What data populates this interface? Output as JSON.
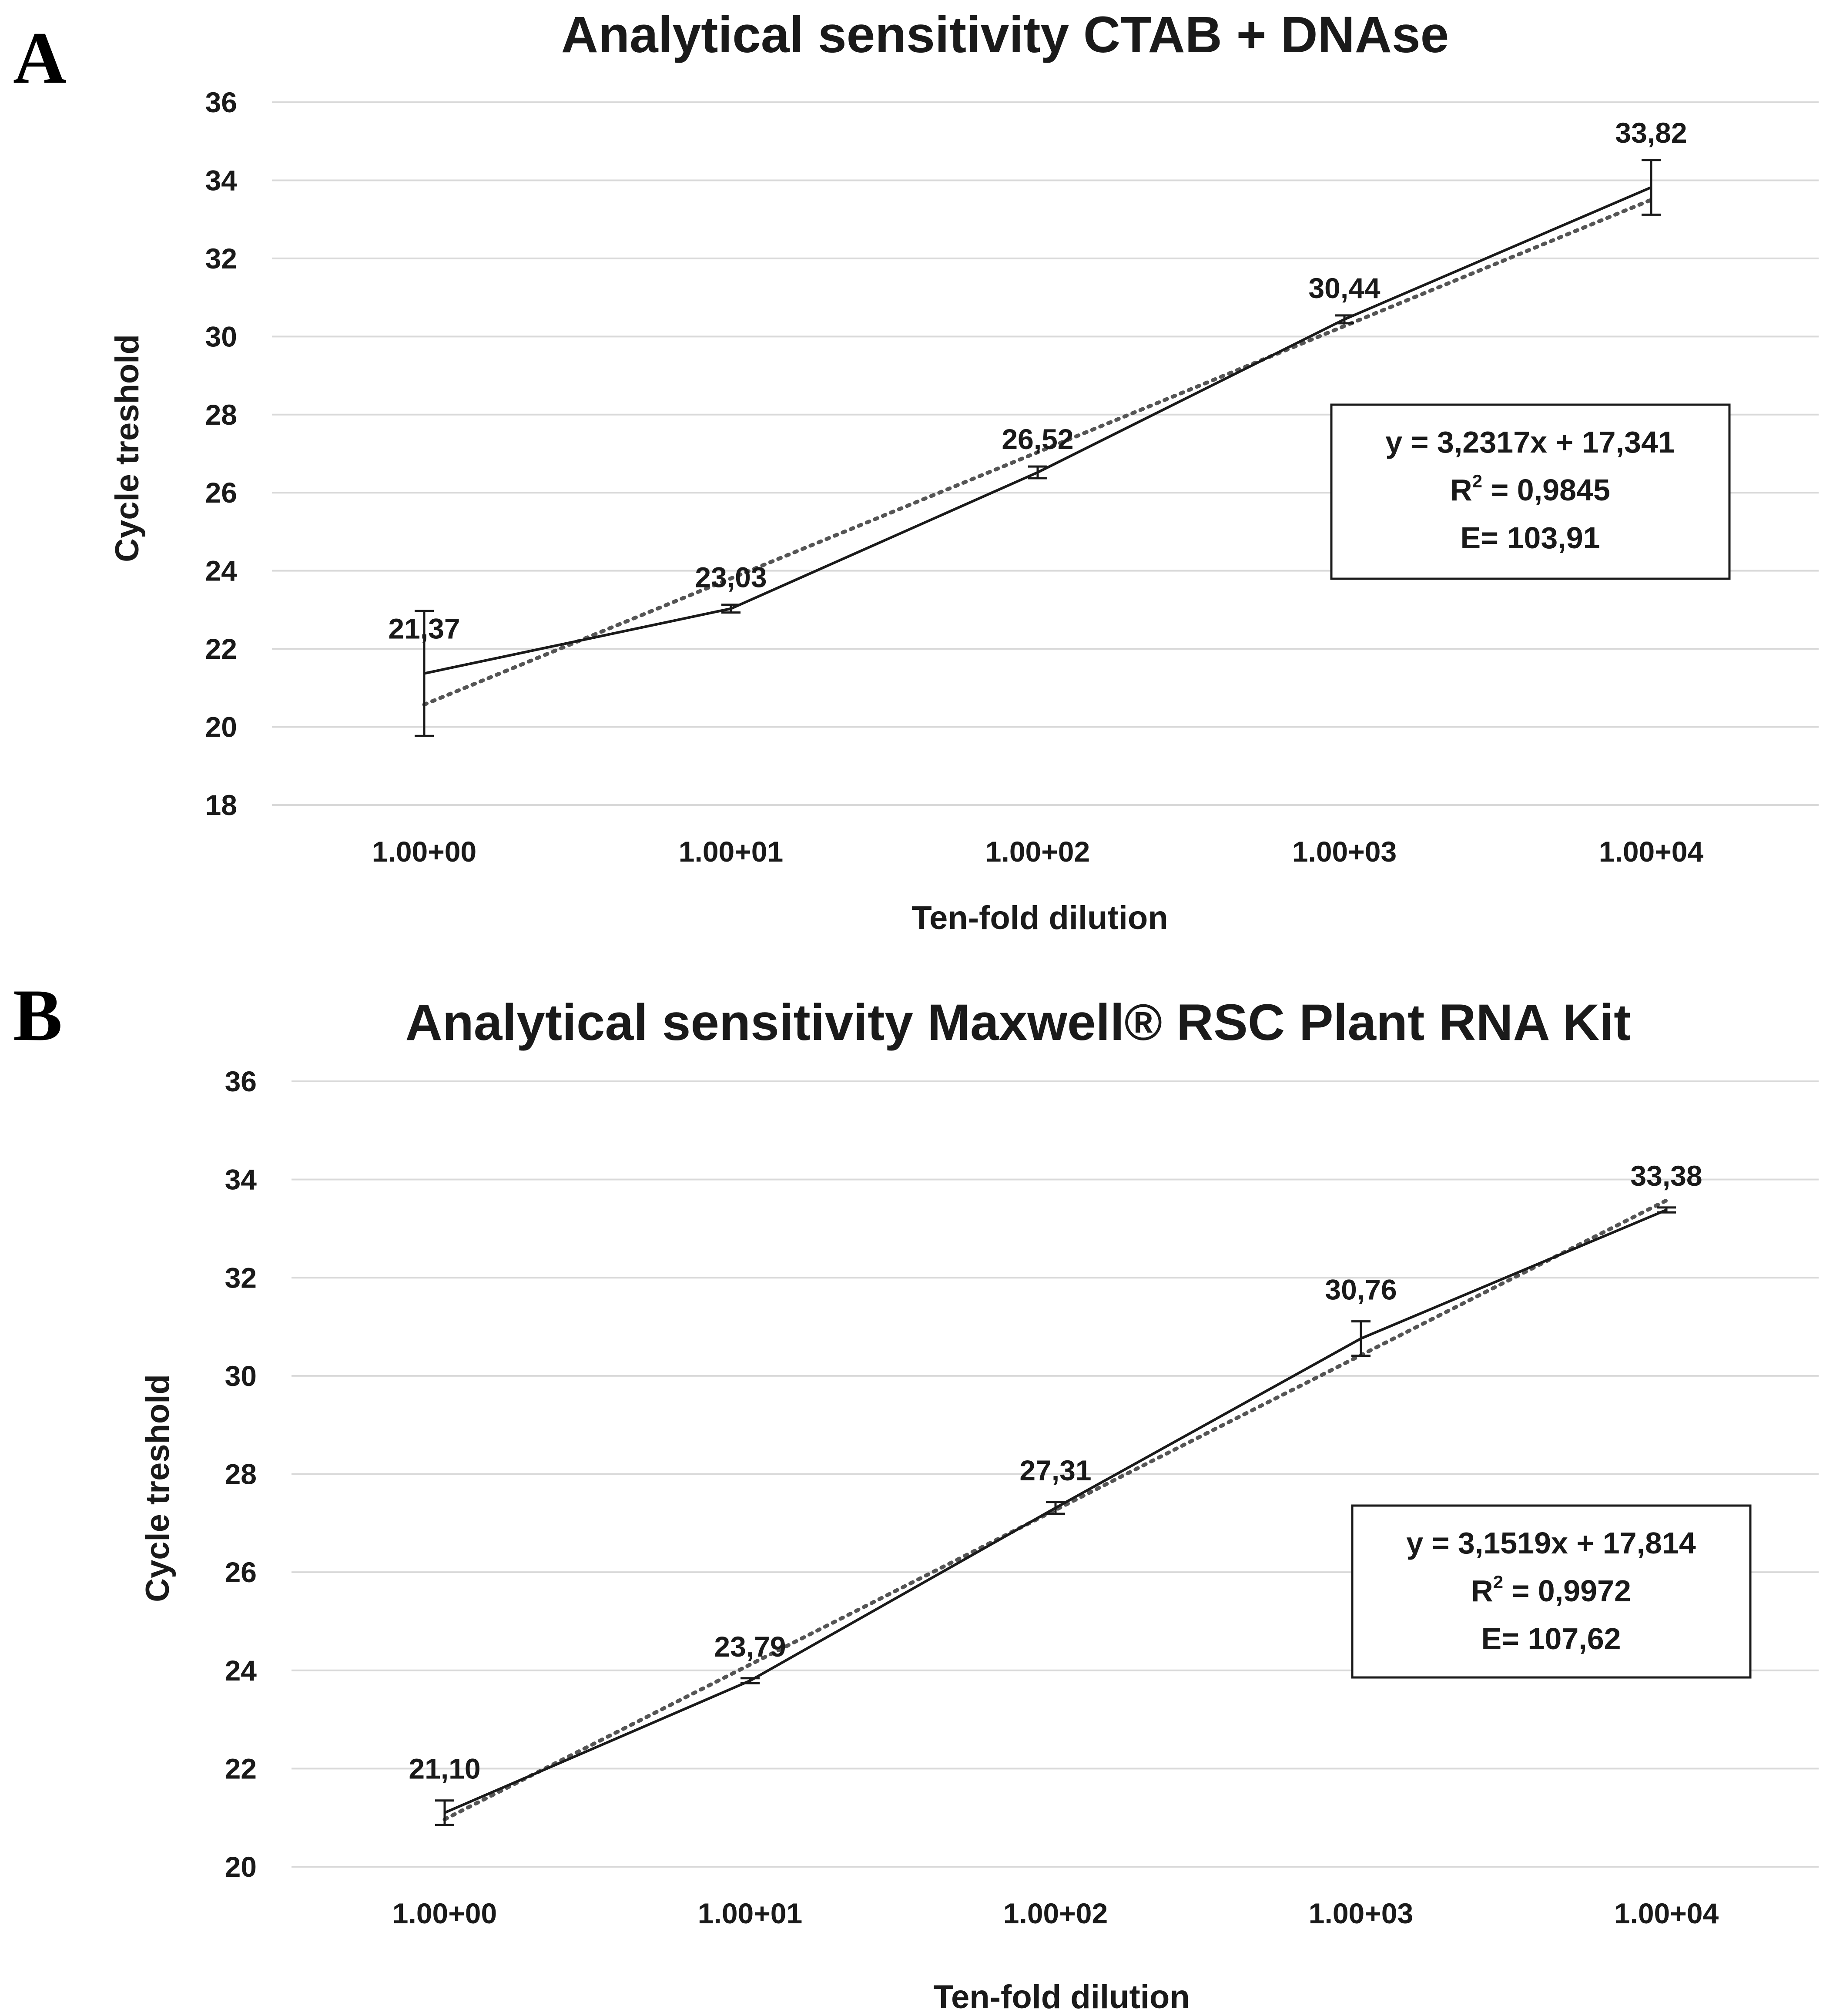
{
  "chart_data": [
    {
      "panel": "A",
      "type": "line",
      "title": "Analytical sensitivity CTAB + DNAse",
      "xlabel": "Ten-fold dilution",
      "ylabel": "Cycle treshold",
      "categories": [
        "1.00+00",
        "1.00+01",
        "1.00+02",
        "1.00+03",
        "1.00+04"
      ],
      "values": [
        21.37,
        23.03,
        26.52,
        30.44,
        33.82
      ],
      "value_labels": [
        "21,37",
        "23,03",
        "26,52",
        "30,44",
        "33,82"
      ],
      "errors": [
        1.6,
        0.1,
        0.15,
        0.1,
        0.7
      ],
      "ylim": [
        18,
        36
      ],
      "yticks": [
        18,
        20,
        22,
        24,
        26,
        28,
        30,
        32,
        34,
        36
      ],
      "grid": true,
      "trendline": {
        "slope": 3.2317,
        "intercept": 17.341
      },
      "equation": {
        "line1": "y = 3,2317x + 17,341",
        "r2_prefix": "R",
        "r2_exp": "2",
        "r2_value": " = 0,9845",
        "line3": "E= 103,91"
      }
    },
    {
      "panel": "B",
      "type": "line",
      "title": "Analytical sensitivity Maxwell® RSC Plant RNA Kit",
      "xlabel": "Ten-fold dilution",
      "ylabel": "Cycle treshold",
      "categories": [
        "1.00+00",
        "1.00+01",
        "1.00+02",
        "1.00+03",
        "1.00+04"
      ],
      "values": [
        21.1,
        23.79,
        27.31,
        30.76,
        33.38
      ],
      "value_labels": [
        "21,10",
        "23,79",
        "27,31",
        "30,76",
        "33,38"
      ],
      "errors": [
        0.25,
        0.05,
        0.12,
        0.35,
        0.05
      ],
      "ylim": [
        20,
        36
      ],
      "yticks": [
        20,
        22,
        24,
        26,
        28,
        30,
        32,
        34,
        36
      ],
      "grid": true,
      "trendline": {
        "slope": 3.1519,
        "intercept": 17.814
      },
      "equation": {
        "line1": "y = 3,1519x + 17,814",
        "r2_prefix": "R",
        "r2_exp": "2",
        "r2_value": " = 0,9972",
        "line3": "E= 107,62"
      }
    }
  ]
}
